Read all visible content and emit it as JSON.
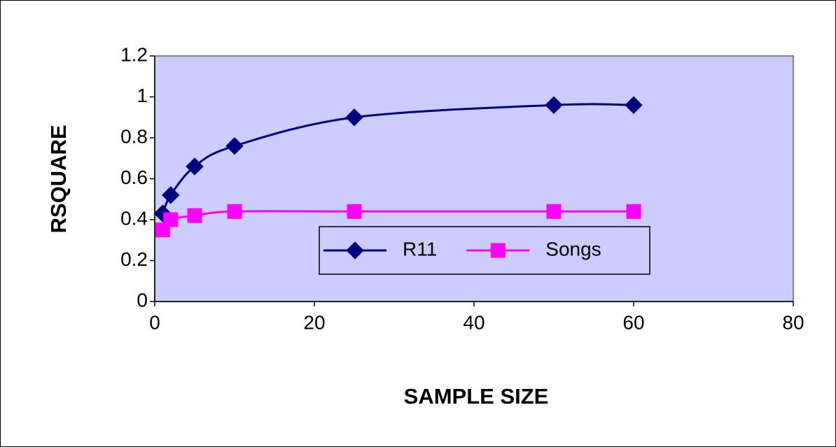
{
  "chart_data": {
    "type": "line",
    "smooth": true,
    "x_label": "SAMPLE SIZE",
    "y_label": "RSQUARE",
    "x": [
      1,
      2,
      5,
      10,
      25,
      50,
      60
    ],
    "series": [
      {
        "name": "R11",
        "color": "#000080",
        "marker": "diamond",
        "values": [
          0.43,
          0.52,
          0.66,
          0.76,
          0.9,
          0.96,
          0.96
        ]
      },
      {
        "name": "Songs",
        "color": "#ff00ff",
        "marker": "square",
        "values": [
          0.35,
          0.4,
          0.42,
          0.44,
          0.44,
          0.44,
          0.44
        ]
      }
    ],
    "xlim": [
      0,
      80
    ],
    "xticks": [
      0,
      20,
      40,
      60,
      80
    ],
    "ylim": [
      0,
      1.2
    ],
    "yticks": [
      0,
      0.2,
      0.4,
      0.6,
      0.8,
      1,
      1.2
    ],
    "grid": false,
    "legend": "inside",
    "plot_background": "#ccccff"
  }
}
